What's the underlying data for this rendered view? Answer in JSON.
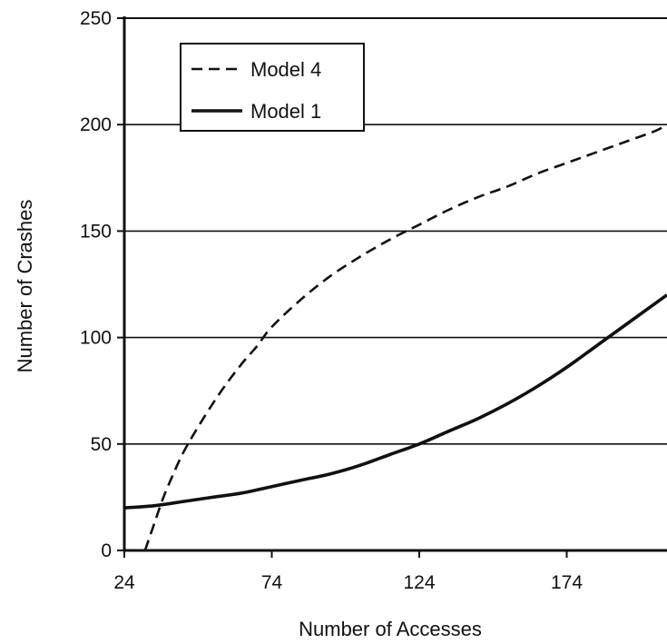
{
  "chart_data": {
    "type": "line",
    "title": "",
    "xlabel": "Number of Accesses",
    "ylabel": "Number of Crashes",
    "xlim": [
      24,
      208
    ],
    "ylim": [
      0,
      250
    ],
    "x_ticks": [
      24,
      74,
      124,
      174
    ],
    "y_ticks": [
      0,
      50,
      100,
      150,
      200,
      250
    ],
    "grid": "horizontal",
    "legend_position": "top-left",
    "series": [
      {
        "name": "Model 4",
        "style": "dashed",
        "color": "#111111",
        "x": [
          31,
          34,
          37,
          40,
          44,
          49,
          54,
          59,
          64,
          69,
          74,
          84,
          94,
          104,
          114,
          124,
          134,
          144,
          154,
          164,
          174,
          184,
          194,
          204,
          208
        ],
        "y": [
          0,
          12,
          24,
          34,
          46,
          58,
          69,
          79,
          88,
          96,
          105,
          118,
          129,
          138,
          146,
          153,
          160,
          166,
          171,
          177,
          182,
          187,
          192,
          197,
          200
        ]
      },
      {
        "name": "Model 1",
        "style": "solid",
        "color": "#111111",
        "x": [
          24,
          34,
          44,
          54,
          64,
          74,
          84,
          94,
          104,
          114,
          124,
          134,
          144,
          154,
          164,
          174,
          184,
          194,
          204,
          208
        ],
        "y": [
          20,
          21,
          23,
          25,
          27,
          30,
          33,
          36,
          40,
          45,
          50,
          56,
          62,
          69,
          77,
          86,
          96,
          106,
          116,
          120
        ]
      }
    ]
  }
}
